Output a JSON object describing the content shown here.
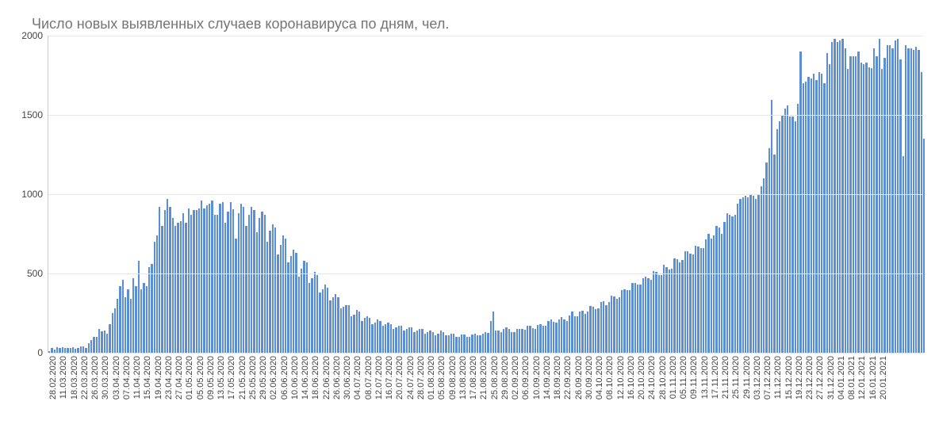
{
  "chart": {
    "type": "bar",
    "title": "Число новых выявленных случаев коронавируса по дням, чел.",
    "title_fontsize": 18,
    "title_color": "#757575",
    "bar_color": "#5b8ed6",
    "background_color": "#ffffff",
    "grid_color": "#e6e6e6",
    "text_color": "#444444",
    "yaxis": {
      "min": 0,
      "max": 2000,
      "tick_step": 500,
      "ticks": [
        0,
        500,
        1000,
        1500,
        2000
      ],
      "label_fontsize": 12
    },
    "xaxis": {
      "label_fontsize": 11,
      "label_rotation": -90,
      "tick_interval_days": 4,
      "tick_labels": [
        "28.02.2020",
        "11.03.2020",
        "18.03.2020",
        "22.03.2020",
        "26.03.2020",
        "30.03.2020",
        "03.04.2020",
        "07.04.2020",
        "11.04.2020",
        "15.04.2020",
        "19.04.2020",
        "23.04.2020",
        "27.04.2020",
        "01.05.2020",
        "05.05.2020",
        "09.05.2020",
        "13.05.2020",
        "17.05.2020",
        "21.05.2020",
        "25.05.2020",
        "29.05.2020",
        "02.06.2020",
        "06.06.2020",
        "10.06.2020",
        "14.06.2020",
        "18.06.2020",
        "22.06.2020",
        "26.06.2020",
        "30.06.2020",
        "04.07.2020",
        "08.07.2020",
        "12.07.2020",
        "16.07.2020",
        "20.07.2020",
        "24.07.2020",
        "28.07.2020",
        "01.08.2020",
        "05.08.2020",
        "09.08.2020",
        "13.08.2020",
        "17.08.2020",
        "21.08.2020",
        "25.08.2020",
        "29.08.2020",
        "02.09.2020",
        "06.09.2020",
        "10.09.2020",
        "14.09.2020",
        "18.09.2020",
        "22.09.2020",
        "26.09.2020",
        "30.09.2020",
        "04.10.2020",
        "08.10.2020",
        "12.10.2020",
        "16.10.2020",
        "20.10.2020",
        "24.10.2020",
        "28.10.2020",
        "01.11.2020",
        "05.11.2020",
        "09.11.2020",
        "13.11.2020",
        "17.11.2020",
        "21.11.2020",
        "25.11.2020",
        "29.11.2020",
        "03.12.2020",
        "07.12.2020",
        "11.12.2020",
        "15.12.2020",
        "19.12.2020",
        "23.12.2020",
        "27.12.2020",
        "31.12.2020",
        "04.01.2021",
        "08.01.2021",
        "12.01.2021",
        "16.01.2021",
        "20.01.2021"
      ]
    },
    "values": [
      10,
      30,
      20,
      35,
      30,
      35,
      30,
      30,
      30,
      35,
      25,
      30,
      40,
      40,
      30,
      60,
      80,
      100,
      100,
      150,
      135,
      140,
      120,
      180,
      250,
      280,
      340,
      420,
      460,
      350,
      400,
      340,
      470,
      420,
      580,
      400,
      440,
      420,
      540,
      560,
      700,
      740,
      920,
      800,
      900,
      970,
      920,
      850,
      800,
      820,
      830,
      880,
      820,
      910,
      870,
      900,
      900,
      910,
      960,
      910,
      930,
      940,
      960,
      870,
      870,
      940,
      950,
      820,
      890,
      950,
      905,
      720,
      880,
      940,
      920,
      800,
      870,
      920,
      900,
      760,
      850,
      890,
      870,
      700,
      770,
      810,
      790,
      620,
      680,
      740,
      720,
      570,
      610,
      650,
      630,
      480,
      530,
      580,
      570,
      440,
      470,
      510,
      490,
      380,
      400,
      430,
      410,
      330,
      350,
      370,
      350,
      280,
      290,
      300,
      300,
      230,
      240,
      270,
      260,
      200,
      220,
      230,
      220,
      180,
      190,
      210,
      200,
      170,
      180,
      190,
      180,
      150,
      160,
      170,
      170,
      140,
      150,
      160,
      160,
      130,
      140,
      150,
      150,
      120,
      130,
      140,
      130,
      110,
      120,
      140,
      130,
      110,
      110,
      120,
      120,
      100,
      100,
      115,
      115,
      100,
      100,
      115,
      120,
      110,
      110,
      120,
      130,
      125,
      200,
      260,
      140,
      140,
      130,
      150,
      160,
      150,
      130,
      130,
      150,
      150,
      150,
      145,
      170,
      170,
      155,
      150,
      175,
      180,
      170,
      170,
      200,
      210,
      195,
      190,
      210,
      225,
      210,
      200,
      235,
      260,
      230,
      230,
      260,
      265,
      245,
      260,
      295,
      290,
      275,
      280,
      320,
      325,
      300,
      320,
      360,
      355,
      340,
      350,
      395,
      400,
      395,
      395,
      440,
      440,
      430,
      430,
      470,
      480,
      470,
      460,
      515,
      510,
      490,
      490,
      555,
      540,
      525,
      530,
      595,
      590,
      570,
      585,
      640,
      640,
      625,
      620,
      675,
      670,
      660,
      660,
      715,
      750,
      720,
      740,
      800,
      790,
      750,
      825,
      880,
      870,
      860,
      870,
      940,
      970,
      980,
      990,
      980,
      1000,
      990,
      970,
      1000,
      1050,
      1100,
      1200,
      1290,
      1595,
      1250,
      1410,
      1460,
      1500,
      1540,
      1560,
      1490,
      1490,
      1460,
      1570,
      1900,
      1700,
      1710,
      1740,
      1730,
      1760,
      1720,
      1770,
      1760,
      1700,
      1890,
      1820,
      1960,
      1980,
      1960,
      1970,
      1980,
      1920,
      1790,
      1870,
      1870,
      1870,
      1900,
      1830,
      1820,
      1830,
      1800,
      1795,
      1920,
      1870,
      1980,
      1790,
      1860,
      1940,
      1940,
      1920,
      1970,
      1980,
      1850,
      1240,
      1940,
      1920,
      1920,
      1910,
      1930,
      1910,
      1770,
      1350
    ]
  }
}
